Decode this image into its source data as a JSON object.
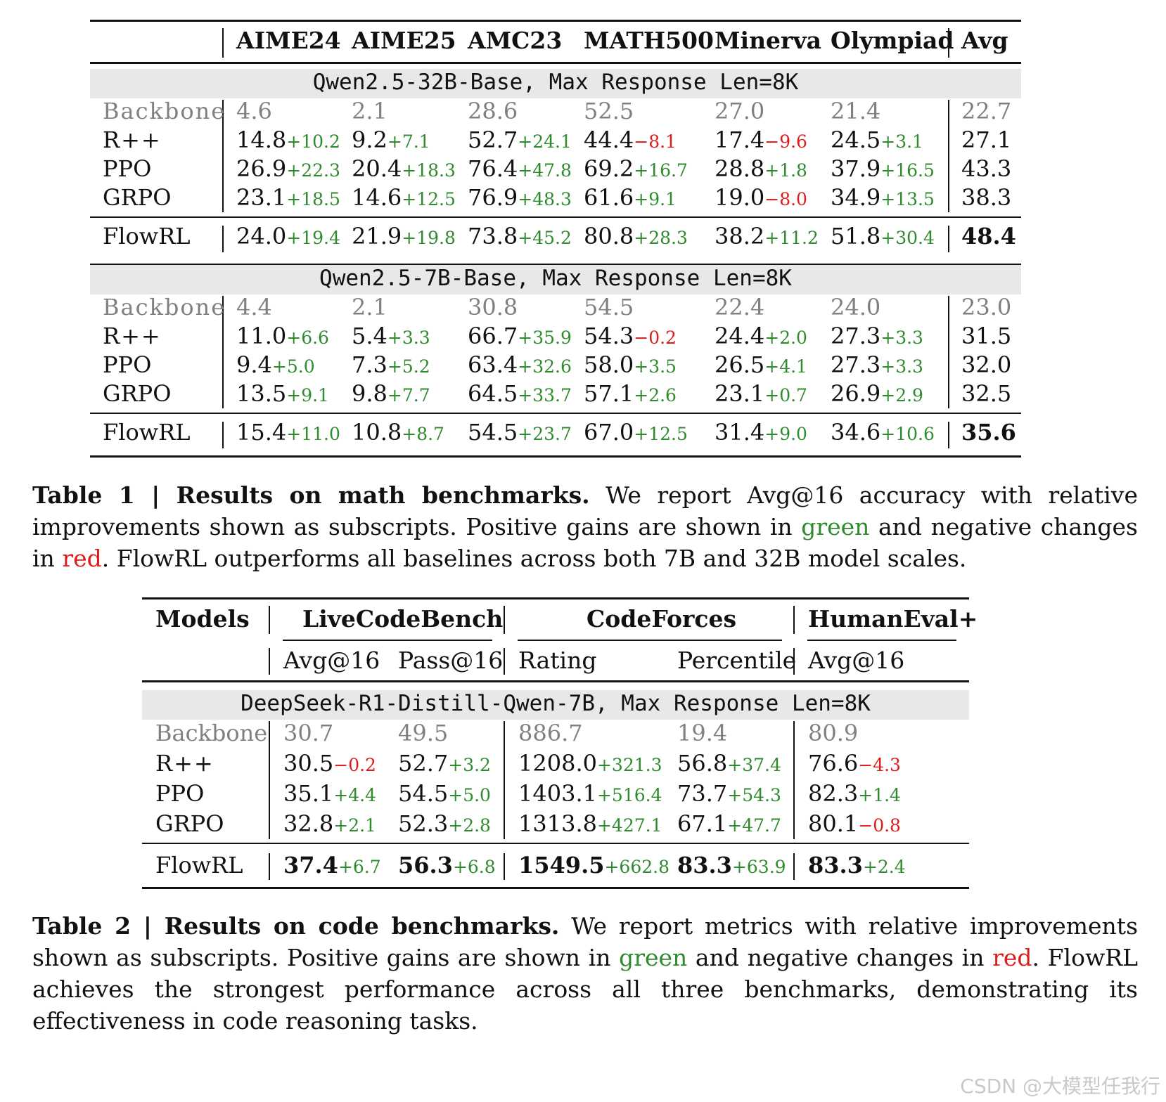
{
  "table1": {
    "headers": [
      "AIME24",
      "AIME25",
      "AMC23",
      "MATH500",
      "Minerva",
      "Olympiad",
      "Avg"
    ],
    "groups": [
      {
        "title": "Qwen2.5-32B-Base, Max Response Len=8K",
        "rows": [
          {
            "model": "Backbone",
            "cells": [
              {
                "v": "4.6"
              },
              {
                "v": "2.1"
              },
              {
                "v": "28.6"
              },
              {
                "v": "52.5"
              },
              {
                "v": "27.0"
              },
              {
                "v": "21.4"
              },
              {
                "v": "22.7"
              }
            ]
          },
          {
            "model": "R++",
            "cells": [
              {
                "v": "14.8",
                "d": "+10.2"
              },
              {
                "v": "9.2",
                "d": "+7.1"
              },
              {
                "v": "52.7",
                "d": "+24.1"
              },
              {
                "v": "44.4",
                "d": "−8.1"
              },
              {
                "v": "17.4",
                "d": "−9.6"
              },
              {
                "v": "24.5",
                "d": "+3.1"
              },
              {
                "v": "27.1"
              }
            ]
          },
          {
            "model": "PPO",
            "cells": [
              {
                "v": "26.9",
                "d": "+22.3"
              },
              {
                "v": "20.4",
                "d": "+18.3"
              },
              {
                "v": "76.4",
                "d": "+47.8"
              },
              {
                "v": "69.2",
                "d": "+16.7"
              },
              {
                "v": "28.8",
                "d": "+1.8"
              },
              {
                "v": "37.9",
                "d": "+16.5"
              },
              {
                "v": "43.3"
              }
            ]
          },
          {
            "model": "GRPO",
            "cells": [
              {
                "v": "23.1",
                "d": "+18.5"
              },
              {
                "v": "14.6",
                "d": "+12.5"
              },
              {
                "v": "76.9",
                "d": "+48.3"
              },
              {
                "v": "61.6",
                "d": "+9.1"
              },
              {
                "v": "19.0",
                "d": "−8.0"
              },
              {
                "v": "34.9",
                "d": "+13.5"
              },
              {
                "v": "38.3"
              }
            ]
          }
        ],
        "flow": {
          "model": "FlowRL",
          "cells": [
            {
              "v": "24.0",
              "d": "+19.4"
            },
            {
              "v": "21.9",
              "d": "+19.8"
            },
            {
              "v": "73.8",
              "d": "+45.2"
            },
            {
              "v": "80.8",
              "d": "+28.3"
            },
            {
              "v": "38.2",
              "d": "+11.2"
            },
            {
              "v": "51.8",
              "d": "+30.4"
            },
            {
              "v": "48.4",
              "b": true
            }
          ]
        }
      },
      {
        "title": "Qwen2.5-7B-Base, Max Response Len=8K",
        "rows": [
          {
            "model": "Backbone",
            "cells": [
              {
                "v": "4.4"
              },
              {
                "v": "2.1"
              },
              {
                "v": "30.8"
              },
              {
                "v": "54.5"
              },
              {
                "v": "22.4"
              },
              {
                "v": "24.0"
              },
              {
                "v": "23.0"
              }
            ]
          },
          {
            "model": "R++",
            "cells": [
              {
                "v": "11.0",
                "d": "+6.6"
              },
              {
                "v": "5.4",
                "d": "+3.3"
              },
              {
                "v": "66.7",
                "d": "+35.9"
              },
              {
                "v": "54.3",
                "d": "−0.2"
              },
              {
                "v": "24.4",
                "d": "+2.0"
              },
              {
                "v": "27.3",
                "d": "+3.3"
              },
              {
                "v": "31.5"
              }
            ]
          },
          {
            "model": "PPO",
            "cells": [
              {
                "v": "9.4",
                "d": "+5.0"
              },
              {
                "v": "7.3",
                "d": "+5.2"
              },
              {
                "v": "63.4",
                "d": "+32.6"
              },
              {
                "v": "58.0",
                "d": "+3.5"
              },
              {
                "v": "26.5",
                "d": "+4.1"
              },
              {
                "v": "27.3",
                "d": "+3.3"
              },
              {
                "v": "32.0"
              }
            ]
          },
          {
            "model": "GRPO",
            "cells": [
              {
                "v": "13.5",
                "d": "+9.1"
              },
              {
                "v": "9.8",
                "d": "+7.7"
              },
              {
                "v": "64.5",
                "d": "+33.7"
              },
              {
                "v": "57.1",
                "d": "+2.6"
              },
              {
                "v": "23.1",
                "d": "+0.7"
              },
              {
                "v": "26.9",
                "d": "+2.9"
              },
              {
                "v": "32.5"
              }
            ]
          }
        ],
        "flow": {
          "model": "FlowRL",
          "cells": [
            {
              "v": "15.4",
              "d": "+11.0"
            },
            {
              "v": "10.8",
              "d": "+8.7"
            },
            {
              "v": "54.5",
              "d": "+23.7"
            },
            {
              "v": "67.0",
              "d": "+12.5"
            },
            {
              "v": "31.4",
              "d": "+9.0"
            },
            {
              "v": "34.6",
              "d": "+10.6"
            },
            {
              "v": "35.6",
              "b": true
            }
          ]
        }
      }
    ],
    "caption": {
      "label": "Table 1 | Results on math benchmarks.",
      "pre": " We report Avg@16 accuracy with relative improvements shown as subscripts. Positive gains are shown in ",
      "green": "green",
      "mid": " and negative changes in ",
      "red": "red",
      "post": ". FlowRL outperforms all baselines across both 7B and 32B model scales."
    }
  },
  "table2": {
    "models_header": "Models",
    "groups_header": [
      "LiveCodeBench",
      "CodeForces",
      "HumanEval+"
    ],
    "sub_headers": [
      "Avg@16",
      "Pass@16",
      "Rating",
      "Percentile",
      "Avg@16"
    ],
    "group_title": "DeepSeek-R1-Distill-Qwen-7B, Max Response Len=8K",
    "rows": [
      {
        "model": "Backbone",
        "cells": [
          {
            "v": "30.7"
          },
          {
            "v": "49.5"
          },
          {
            "v": "886.7"
          },
          {
            "v": "19.4"
          },
          {
            "v": "80.9"
          }
        ]
      },
      {
        "model": "R++",
        "cells": [
          {
            "v": "30.5",
            "d": "−0.2"
          },
          {
            "v": "52.7",
            "d": "+3.2"
          },
          {
            "v": "1208.0",
            "d": "+321.3"
          },
          {
            "v": "56.8",
            "d": "+37.4"
          },
          {
            "v": "76.6",
            "d": "−4.3"
          }
        ]
      },
      {
        "model": "PPO",
        "cells": [
          {
            "v": "35.1",
            "d": "+4.4"
          },
          {
            "v": "54.5",
            "d": "+5.0"
          },
          {
            "v": "1403.1",
            "d": "+516.4"
          },
          {
            "v": "73.7",
            "d": "+54.3"
          },
          {
            "v": "82.3",
            "d": "+1.4"
          }
        ]
      },
      {
        "model": "GRPO",
        "cells": [
          {
            "v": "32.8",
            "d": "+2.1"
          },
          {
            "v": "52.3",
            "d": "+2.8"
          },
          {
            "v": "1313.8",
            "d": "+427.1"
          },
          {
            "v": "67.1",
            "d": "+47.7"
          },
          {
            "v": "80.1",
            "d": "−0.8"
          }
        ]
      }
    ],
    "flow": {
      "model": "FlowRL",
      "cells": [
        {
          "v": "37.4",
          "d": "+6.7",
          "b": true
        },
        {
          "v": "56.3",
          "d": "+6.8",
          "b": true
        },
        {
          "v": "1549.5",
          "d": "+662.8",
          "b": true
        },
        {
          "v": "83.3",
          "d": "+63.9",
          "b": true
        },
        {
          "v": "83.3",
          "d": "+2.4",
          "b": true
        }
      ]
    },
    "caption": {
      "label": "Table 2 | Results on code benchmarks.",
      "pre": " We report metrics with relative improvements shown as subscripts. Positive gains are shown in ",
      "green": "green",
      "mid": " and negative changes in ",
      "red": "red",
      "post": ". FlowRL achieves the strongest performance across all three benchmarks, demonstrating its effectiveness in code reasoning tasks."
    }
  },
  "watermark": "CSDN @大模型任我行"
}
